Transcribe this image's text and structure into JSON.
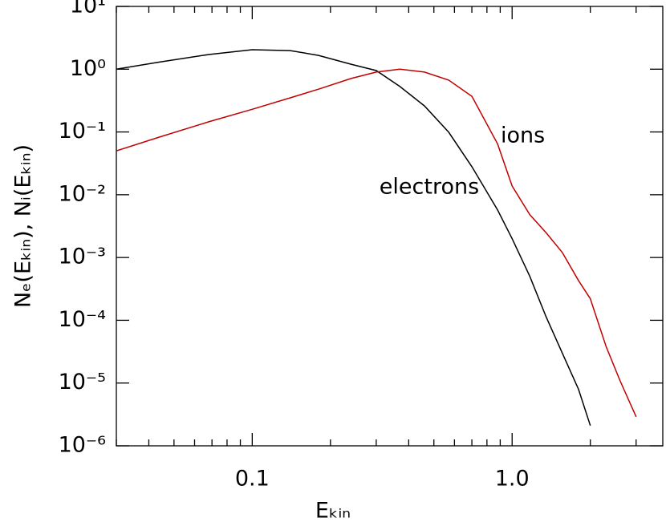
{
  "chart_data": {
    "type": "line",
    "x_label": "Eₖᵢₙ",
    "y_label": "Nₑ(Eₖᵢₙ),  Nᵢ(Eₖᵢₙ)",
    "x": [
      0.03,
      0.044,
      0.068,
      0.1,
      0.14,
      0.18,
      0.24,
      0.3,
      0.37,
      0.46,
      0.57,
      0.7,
      0.88,
      1.0,
      1.17,
      1.35,
      1.56,
      1.8,
      2.0,
      2.3,
      2.6,
      3.0
    ],
    "series": [
      {
        "name": "electrons",
        "color": "#000000",
        "values": [
          1.0,
          1.3,
          1.71,
          2.04,
          1.98,
          1.66,
          1.2,
          0.95,
          0.53,
          0.26,
          0.099,
          0.028,
          0.0057,
          0.002,
          0.0005,
          0.000115,
          3e-05,
          8e-06,
          2.1e-06,
          null,
          null,
          null
        ]
      },
      {
        "name": "ions",
        "color": "#c00000",
        "values": [
          0.05,
          0.083,
          0.145,
          0.23,
          0.35,
          0.48,
          0.71,
          0.9,
          1.0,
          0.9,
          0.67,
          0.37,
          0.064,
          0.0138,
          0.0048,
          0.0025,
          0.0012,
          0.00043,
          0.00022,
          3.8e-05,
          1.1e-05,
          2.9e-06
        ]
      }
    ],
    "annotations": [
      {
        "text": "ions",
        "x": 1.1,
        "y": 0.085
      },
      {
        "text": "electrons",
        "x": 0.48,
        "y": 0.013
      }
    ],
    "xlim": [
      0.03,
      3.8
    ],
    "ylim": [
      1e-06,
      10
    ],
    "x_log": true,
    "y_log": true,
    "xticks": [
      0.1,
      {
        "value": 1,
        "label": "1.0"
      }
    ],
    "yticks": [
      {
        "value": 10,
        "label": "10¹"
      },
      {
        "value": 1,
        "label": "10⁰"
      },
      {
        "value": 0.1,
        "label": "10⁻¹"
      },
      {
        "value": 0.01,
        "label": "10⁻²"
      },
      {
        "value": 0.001,
        "label": "10⁻³"
      },
      {
        "value": 0.0001,
        "label": "10⁻⁴"
      },
      {
        "value": 1e-05,
        "label": "10⁻⁵"
      },
      {
        "value": 1e-06,
        "label": "10⁻⁶"
      }
    ],
    "x_minor_ticks": true,
    "grid": false
  }
}
